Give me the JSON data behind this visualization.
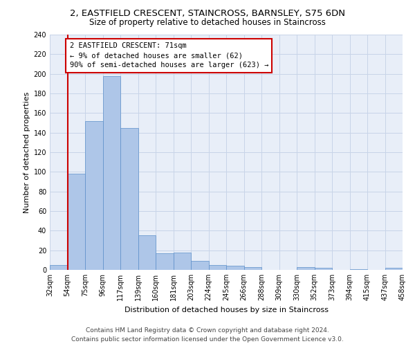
{
  "title1": "2, EASTFIELD CRESCENT, STAINCROSS, BARNSLEY, S75 6DN",
  "title2": "Size of property relative to detached houses in Staincross",
  "xlabel": "Distribution of detached houses by size in Staincross",
  "ylabel": "Number of detached properties",
  "bar_values": [
    5,
    98,
    152,
    198,
    145,
    35,
    17,
    18,
    9,
    5,
    4,
    3,
    0,
    0,
    3,
    2,
    0,
    1,
    0,
    2
  ],
  "bin_labels": [
    "32sqm",
    "54sqm",
    "75sqm",
    "96sqm",
    "117sqm",
    "139sqm",
    "160sqm",
    "181sqm",
    "203sqm",
    "224sqm",
    "245sqm",
    "266sqm",
    "288sqm",
    "309sqm",
    "330sqm",
    "352sqm",
    "373sqm",
    "394sqm",
    "415sqm",
    "437sqm",
    "458sqm"
  ],
  "bar_color": "#aec6e8",
  "bar_edge_color": "#5b8fc9",
  "grid_color": "#c8d4e8",
  "background_color": "#e8eef8",
  "marker_bin_index": 1,
  "annotation_text": "2 EASTFIELD CRESCENT: 71sqm\n← 9% of detached houses are smaller (62)\n90% of semi-detached houses are larger (623) →",
  "annotation_box_color": "#ffffff",
  "annotation_border_color": "#cc0000",
  "marker_line_color": "#cc0000",
  "ylim": [
    0,
    240
  ],
  "yticks": [
    0,
    20,
    40,
    60,
    80,
    100,
    120,
    140,
    160,
    180,
    200,
    220,
    240
  ],
  "footer1": "Contains HM Land Registry data © Crown copyright and database right 2024.",
  "footer2": "Contains public sector information licensed under the Open Government Licence v3.0.",
  "title1_fontsize": 9.5,
  "title2_fontsize": 8.5,
  "xlabel_fontsize": 8,
  "ylabel_fontsize": 8,
  "tick_fontsize": 7,
  "annotation_fontsize": 7.5,
  "footer_fontsize": 6.5
}
